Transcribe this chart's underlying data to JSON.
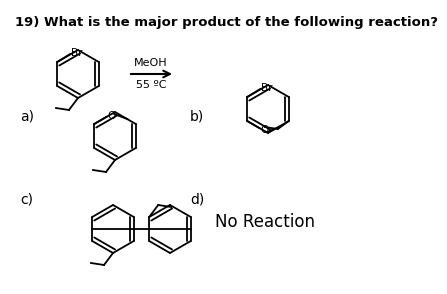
{
  "title": "19) What is the major product of the following reaction?",
  "title_fontsize": 9.5,
  "bg_color": "#ffffff",
  "text_color": "#000000",
  "reaction_reagent": "MeOH",
  "reaction_condition": "55 ºC",
  "option_a": "a)",
  "option_b": "b)",
  "option_c": "c)",
  "option_d": "d)",
  "option_d_text": "No Reaction"
}
